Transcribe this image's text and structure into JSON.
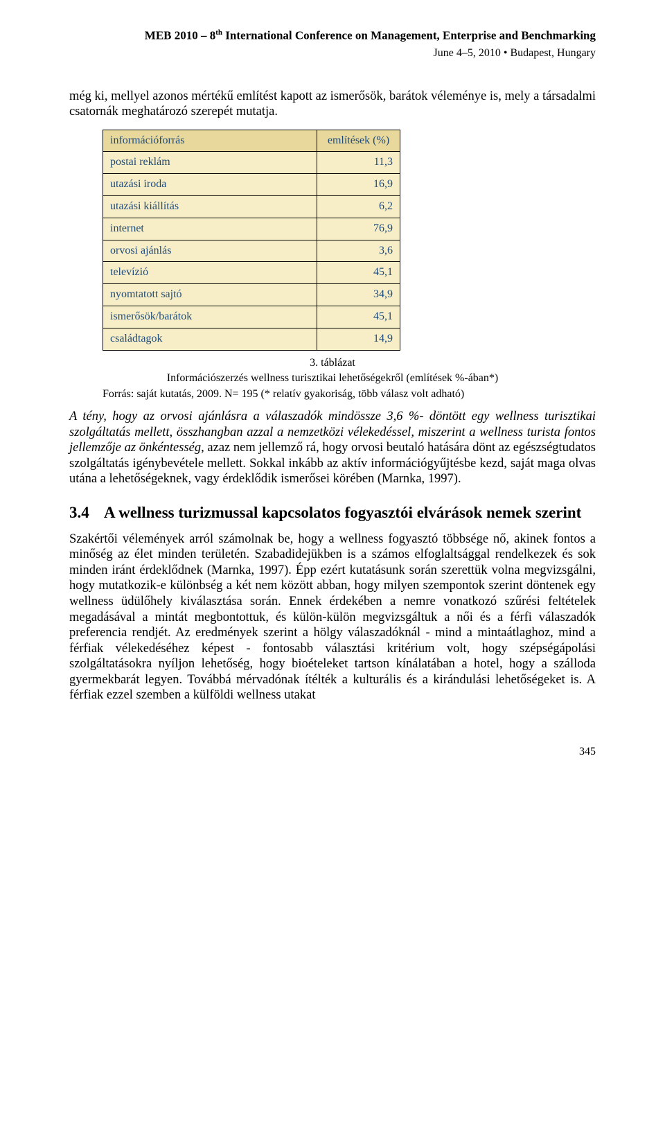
{
  "header": {
    "conference_line": "MEB 2010 – 8",
    "conference_sup": "th",
    "conference_rest": " International Conference on Management, Enterprise and Benchmarking",
    "date_line": "June 4–5, 2010 • Budapest, Hungary"
  },
  "intro_paragraph": "még ki, mellyel azonos mértékű említést kapott az ismerősök, barátok véleménye is, mely a társadalmi csatornák meghatározó szerepét mutatja.",
  "table": {
    "col1_header": "információforrás",
    "col2_header": "említések (%)",
    "rows": [
      {
        "label": "postai reklám",
        "value": "11,3"
      },
      {
        "label": "utazási iroda",
        "value": "16,9"
      },
      {
        "label": "utazási kiállítás",
        "value": "6,2"
      },
      {
        "label": "internet",
        "value": "76,9"
      },
      {
        "label": "orvosi ajánlás",
        "value": "3,6"
      },
      {
        "label": "televízió",
        "value": "45,1"
      },
      {
        "label": "nyomtatott sajtó",
        "value": "34,9"
      },
      {
        "label": "ismerősök/barátok",
        "value": "45,1"
      },
      {
        "label": "családtagok",
        "value": "14,9"
      }
    ],
    "caption_number": "3. táblázat",
    "caption_text": "Információszerzés wellness turisztikai lehetőségekről (említések %-ában*)",
    "source_line": "Forrás: saját kutatás, 2009. N= 195 (* relatív gyakoriság, több válasz volt adható)",
    "colors": {
      "header_bg": "#e8d89c",
      "cell_bg": "#f7eec8",
      "text_color": "#1f4b7a",
      "border_color": "#000000"
    }
  },
  "analysis_paragraph": "A tény, hogy az orvosi ajánlásra a válaszadók mindössze 3,6 %- döntött egy wellness turisztikai szolgáltatás mellett, összhangban azzal a nemzetközi vélekedéssel, miszerint a wellness turista fontos jellemzője az önkéntesség, azaz nem jellemző rá, hogy orvosi beutaló hatására dönt az egészségtudatos szolgáltatás igénybevétele mellett. Sokkal inkább az aktív információgyűjtésbe kezd, saját maga olvas utána a lehetőségeknek, vagy érdeklődik ismerősei körében (Marnka, 1997).",
  "section": {
    "number": "3.4",
    "title": "A wellness turizmussal kapcsolatos fogyasztói elvárások nemek szerint"
  },
  "section_paragraph": "Szakértői vélemények arról számolnak be, hogy a wellness fogyasztó többsége nő, akinek fontos a minőség az élet minden területén. Szabadidejükben is a számos elfoglaltsággal rendelkezek és sok minden iránt érdeklődnek (Marnka, 1997). Épp ezért kutatásunk során szerettük volna megvizsgálni, hogy mutatkozik-e különbség a két nem között abban, hogy milyen szempontok szerint döntenek egy wellness üdülőhely kiválasztása során. Ennek érdekében a nemre vonatkozó szűrési feltételek megadásával a mintát megbontottuk, és külön-külön megvizsgáltuk a női és a férfi válaszadók preferencia rendjét. Az eredmények szerint a hölgy válaszadóknál - mind a mintaátlaghoz, mind a férfiak vélekedéséhez képest - fontosabb választási kritérium volt, hogy szépségápolási szolgáltatásokra nyíljon lehetőség, hogy bioételeket tartson kínálatában a hotel, hogy a szálloda gyermekbarát legyen. Továbbá mérvadónak ítélték a kulturális és a kirándulási lehetőségeket is. A férfiak ezzel szemben a külföldi wellness utakat",
  "page_number": "345"
}
